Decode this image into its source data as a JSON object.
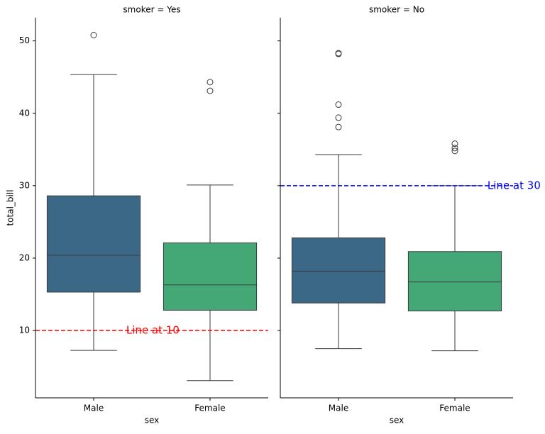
{
  "chart_data": [
    {
      "type": "box",
      "title": "smoker = Yes",
      "x_label": "sex",
      "y_label": "total_bill",
      "categories": [
        "Male",
        "Female"
      ],
      "colors": [
        "#3b6886",
        "#44a776"
      ],
      "boxes": [
        {
          "min": 7.25,
          "q1": 15.3,
          "median": 20.4,
          "q3": 28.6,
          "max": 45.35,
          "outliers": [
            50.8
          ]
        },
        {
          "min": 3.07,
          "q1": 12.8,
          "median": 16.3,
          "q3": 22.1,
          "max": 30.1,
          "outliers": [
            44.3,
            43.1
          ]
        }
      ],
      "ylim": [
        0.7,
        53.2
      ],
      "yticks": [
        10,
        20,
        30,
        40,
        50
      ],
      "reference_line": {
        "value": 10,
        "label": "Line at 10",
        "color": "#ff0000"
      }
    },
    {
      "type": "box",
      "title": "smoker = No",
      "x_label": "sex",
      "categories": [
        "Male",
        "Female"
      ],
      "colors": [
        "#3b6886",
        "#44a776"
      ],
      "boxes": [
        {
          "min": 7.5,
          "q1": 13.8,
          "median": 18.2,
          "q3": 22.8,
          "max": 34.3,
          "outliers": [
            48.3,
            48.2,
            41.2,
            39.4,
            38.1
          ]
        },
        {
          "min": 7.2,
          "q1": 12.7,
          "median": 16.7,
          "q3": 20.9,
          "max": 30.0,
          "outliers": [
            35.8,
            35.2,
            34.8
          ]
        }
      ],
      "ylim": [
        0.7,
        53.2
      ],
      "yticks": [
        10,
        20,
        30,
        40,
        50
      ],
      "reference_line": {
        "value": 30,
        "label": "Line at 30",
        "color": "#0000ff"
      }
    }
  ]
}
